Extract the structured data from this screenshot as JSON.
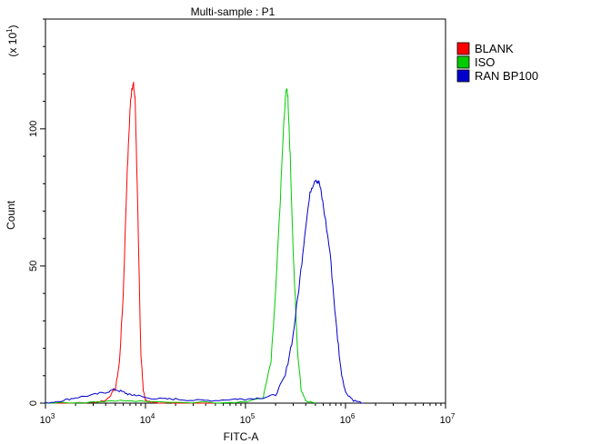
{
  "chart_data": {
    "type": "line",
    "title": "Multi-sample : P1",
    "xlabel": "FITC-A",
    "ylabel": "Count",
    "y_multiplier": "(x 10",
    "y_multiplier_exp": "1",
    "x_scale": "log",
    "xlim": [
      1000,
      10000000
    ],
    "ylim": [
      0,
      140
    ],
    "x_ticks": [
      {
        "value": 1000,
        "base": "10",
        "exp": "3"
      },
      {
        "value": 10000,
        "base": "10",
        "exp": "4"
      },
      {
        "value": 100000,
        "base": "10",
        "exp": "5"
      },
      {
        "value": 1000000,
        "base": "10",
        "exp": "6"
      },
      {
        "value": 10000000,
        "base": "10",
        "exp": "7"
      }
    ],
    "y_ticks": [
      {
        "value": 0,
        "label": "0"
      },
      {
        "value": 50,
        "label": "50"
      },
      {
        "value": 100,
        "label": "100"
      }
    ],
    "grid": false,
    "legend_position": "top-right",
    "series": [
      {
        "name": "BLANK",
        "color": "#ff0000",
        "x": [
          1000,
          2000,
          3000,
          4000,
          5000,
          5500,
          6000,
          6500,
          7000,
          7300,
          7600,
          7900,
          8200,
          8600,
          9000,
          9500,
          10000,
          11000,
          12000,
          14000,
          20000,
          50000
        ],
        "y": [
          0,
          0,
          0.3,
          1,
          5,
          15,
          40,
          80,
          107,
          115,
          116,
          110,
          85,
          50,
          18,
          5,
          1,
          0.5,
          0.3,
          0,
          0,
          0
        ]
      },
      {
        "name": "ISO",
        "color": "#00cc00",
        "x": [
          1000,
          3000,
          5000,
          10000,
          50000,
          100000,
          150000,
          180000,
          200000,
          220000,
          240000,
          255000,
          265000,
          280000,
          300000,
          330000,
          360000,
          400000,
          500000
        ],
        "y": [
          0,
          0.5,
          1,
          0.5,
          0.3,
          0.5,
          2,
          15,
          40,
          70,
          100,
          115,
          112,
          90,
          55,
          20,
          5,
          1,
          0
        ]
      },
      {
        "name": "RAN BP100",
        "color": "#0000cc",
        "x": [
          1000,
          1500,
          2000,
          3000,
          4000,
          5000,
          6000,
          7000,
          8000,
          10000,
          15000,
          20000,
          30000,
          50000,
          80000,
          100000,
          150000,
          200000,
          250000,
          300000,
          350000,
          400000,
          450000,
          500000,
          550000,
          600000,
          700000,
          800000,
          900000,
          1000000,
          1200000,
          1500000
        ],
        "y": [
          0,
          1,
          2,
          3,
          4,
          5,
          4,
          3,
          3,
          2,
          1.5,
          1.5,
          1,
          1,
          1.5,
          1.5,
          2,
          3,
          10,
          25,
          45,
          65,
          78,
          82,
          80,
          72,
          55,
          30,
          12,
          4,
          1,
          0
        ]
      }
    ]
  }
}
